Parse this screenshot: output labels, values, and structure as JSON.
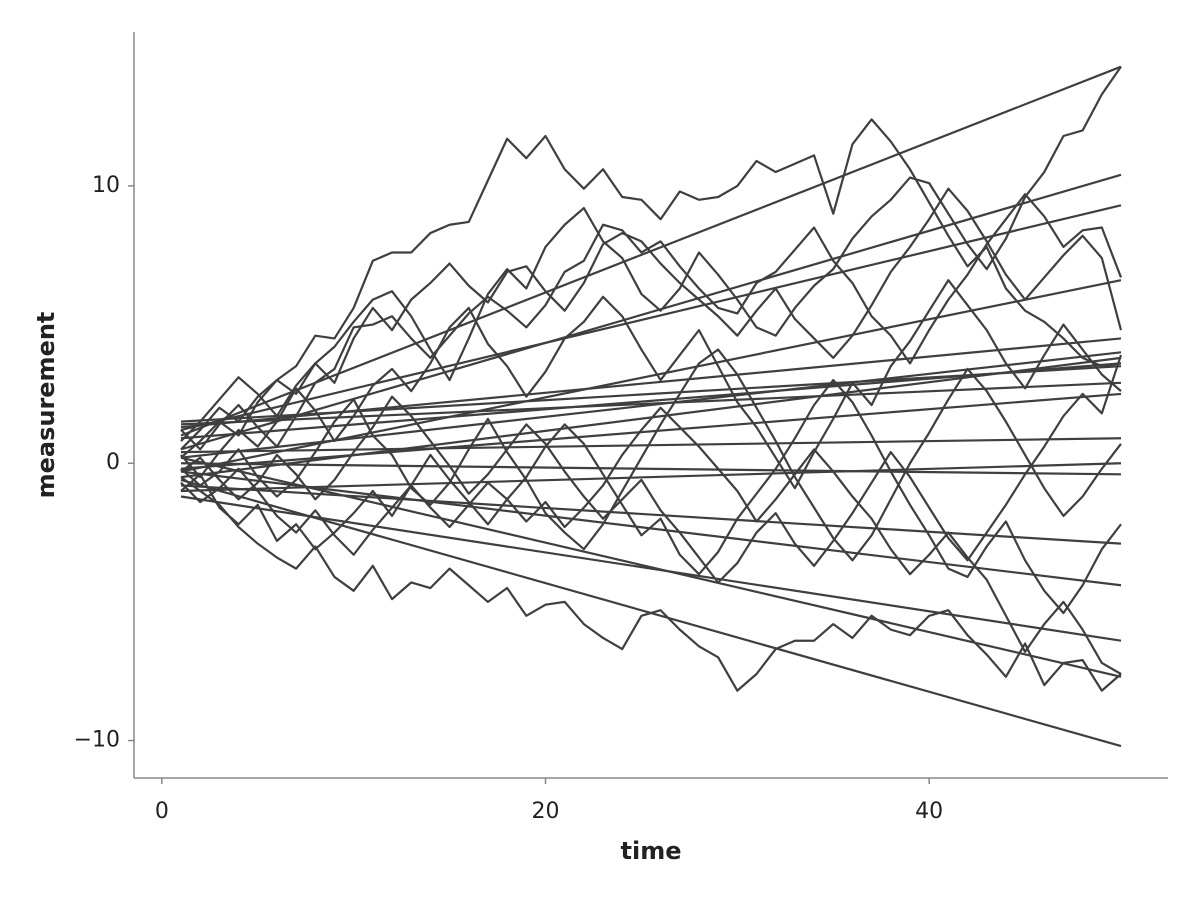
{
  "chart_data": {
    "type": "line",
    "xlabel": "time",
    "ylabel": "measurement",
    "xlim": [
      -1.45,
      52.45
    ],
    "ylim": [
      -11.35,
      15.55
    ],
    "xticks": [
      0,
      20,
      40
    ],
    "yticks": [
      {
        "value": -10,
        "label": "−10"
      },
      0,
      10
    ],
    "x": [
      1,
      2,
      3,
      4,
      5,
      6,
      7,
      8,
      9,
      10,
      11,
      12,
      13,
      14,
      15,
      16,
      17,
      18,
      19,
      20,
      21,
      22,
      23,
      24,
      25,
      26,
      27,
      28,
      29,
      30,
      31,
      32,
      33,
      34,
      35,
      36,
      37,
      38,
      39,
      40,
      41,
      42,
      43,
      44,
      45,
      46,
      47,
      48,
      49,
      50
    ],
    "series": [
      {
        "color": "#3f3f3f",
        "values": [
          0.5,
          1.2,
          2.0,
          1.5,
          2.4,
          3.0,
          3.5,
          4.6,
          4.5,
          5.6,
          7.3,
          7.6,
          7.6,
          8.3,
          8.6,
          8.7,
          10.2,
          11.7,
          11.0,
          11.8,
          10.6,
          9.9,
          10.6,
          9.6,
          9.5,
          8.8,
          9.8,
          9.5,
          9.6,
          10.0,
          10.9,
          10.5,
          10.8,
          11.1,
          9.0,
          11.5,
          12.4,
          11.6,
          10.6,
          9.4,
          8.2,
          7.1,
          7.8,
          6.3,
          5.5,
          5.1,
          4.5,
          3.8,
          3.5,
          3.6
        ]
      },
      {
        "color": "#3f3f3f",
        "values": [
          -0.5,
          -1.0,
          -1.5,
          -2.3,
          -2.9,
          -3.4,
          -3.8,
          -3.0,
          -4.1,
          -4.6,
          -3.7,
          -4.9,
          -4.3,
          -4.5,
          -3.8,
          -4.4,
          -5.0,
          -4.5,
          -5.5,
          -5.1,
          -5.0,
          -5.8,
          -6.3,
          -6.7,
          -5.5,
          -5.3,
          -6.0,
          -6.6,
          -7.0,
          -8.2,
          -7.6,
          -6.7,
          -6.4,
          -6.4,
          -5.8,
          -6.3,
          -5.5,
          -6.0,
          -6.2,
          -5.5,
          -5.3,
          -6.2,
          -6.9,
          -7.7,
          -6.5,
          -8.0,
          -7.2,
          -7.1,
          -8.2,
          -7.6
        ]
      },
      {
        "color": "#3f3f3f",
        "values": [
          0.2,
          0.8,
          1.5,
          1.0,
          2.2,
          3.0,
          2.5,
          3.6,
          4.2,
          5.1,
          5.9,
          6.2,
          5.3,
          4.1,
          3.0,
          4.5,
          6.1,
          7.0,
          6.3,
          7.8,
          8.6,
          9.2,
          8.0,
          7.4,
          6.1,
          5.5,
          6.3,
          7.6,
          6.8,
          5.9,
          4.9,
          4.6,
          5.6,
          6.4,
          7.0,
          8.1,
          8.9,
          9.5,
          10.3,
          10.1,
          9.0,
          7.9,
          7.0,
          8.1,
          9.6,
          10.5,
          11.8,
          12.0,
          13.3,
          14.3
        ]
      },
      {
        "color": "#3f3f3f",
        "values": [
          -0.2,
          -0.8,
          -0.3,
          0.5,
          -0.5,
          -1.2,
          -0.6,
          0.4,
          1.5,
          2.3,
          1.0,
          0.3,
          -0.9,
          -1.5,
          -0.7,
          0.5,
          1.6,
          0.4,
          -0.6,
          -1.8,
          -2.5,
          -3.1,
          -2.2,
          -1.0,
          0.2,
          1.4,
          2.5,
          3.6,
          4.1,
          3.2,
          2.0,
          0.8,
          -0.5,
          -1.6,
          -2.7,
          -3.5,
          -2.6,
          -1.3,
          0.0,
          1.1,
          2.3,
          3.4,
          2.6,
          1.5,
          0.3,
          -0.9,
          -1.9,
          -1.2,
          -0.2,
          0.7
        ]
      },
      {
        "color": "#3f3f3f",
        "values": [
          0.8,
          1.5,
          2.3,
          3.1,
          2.5,
          1.7,
          2.8,
          3.6,
          2.9,
          4.5,
          5.6,
          4.8,
          5.9,
          6.5,
          7.2,
          6.4,
          5.8,
          6.9,
          7.1,
          6.2,
          5.5,
          6.5,
          7.9,
          8.3,
          8.0,
          7.2,
          6.5,
          5.9,
          5.3,
          4.6,
          5.5,
          6.3,
          5.2,
          4.5,
          3.8,
          4.6,
          5.7,
          6.9,
          7.8,
          8.8,
          9.9,
          9.1,
          8.0,
          6.8,
          5.9,
          6.7,
          7.5,
          8.2,
          7.4,
          4.8
        ]
      },
      {
        "color": "#3f3f3f",
        "values": [
          -1.0,
          -0.4,
          -1.6,
          -2.2,
          -1.5,
          -2.8,
          -2.2,
          -3.1,
          -2.5,
          -1.8,
          -1.0,
          -1.9,
          -0.8,
          0.3,
          -0.6,
          -1.4,
          -2.2,
          -1.3,
          -0.5,
          0.6,
          1.4,
          0.7,
          -0.4,
          -1.5,
          -2.6,
          -2.0,
          -3.3,
          -4.0,
          -3.2,
          -2.0,
          -1.1,
          -0.2,
          0.9,
          2.1,
          3.0,
          2.2,
          1.0,
          -0.3,
          -1.5,
          -2.6,
          -3.8,
          -4.1,
          -3.0,
          -2.1,
          -3.5,
          -4.6,
          -5.4,
          -4.4,
          -3.1,
          -2.2
        ]
      },
      {
        "color": "#3f3f3f",
        "values": [
          0.3,
          -0.5,
          0.4,
          1.2,
          0.6,
          1.5,
          2.7,
          1.9,
          0.8,
          1.7,
          2.8,
          3.4,
          2.6,
          3.6,
          4.9,
          5.6,
          4.3,
          3.5,
          2.4,
          3.3,
          4.5,
          5.1,
          6.0,
          5.3,
          4.1,
          3.0,
          3.9,
          4.8,
          3.5,
          2.2,
          1.3,
          0.2,
          -0.9,
          0.4,
          1.6,
          2.9,
          2.1,
          3.5,
          4.4,
          5.5,
          6.6,
          5.7,
          4.8,
          3.6,
          2.7,
          3.9,
          5.0,
          4.1,
          3.2,
          2.6
        ]
      },
      {
        "color": "#3f3f3f",
        "values": [
          -0.7,
          -1.4,
          -0.9,
          -0.2,
          -1.0,
          -1.9,
          -2.5,
          -1.7,
          -2.6,
          -3.3,
          -2.4,
          -1.6,
          -0.8,
          -1.6,
          -2.3,
          -1.5,
          -0.7,
          -1.3,
          -2.1,
          -1.4,
          -2.3,
          -1.6,
          -0.8,
          0.3,
          1.2,
          2.0,
          1.3,
          0.6,
          -0.2,
          -1.0,
          -2.1,
          -1.3,
          -0.4,
          0.5,
          -0.3,
          -1.2,
          -2.0,
          -3.1,
          -4.0,
          -3.3,
          -2.5,
          -3.4,
          -4.2,
          -5.5,
          -6.8,
          -5.8,
          -5.0,
          -6.0,
          -7.2,
          -7.6
        ]
      },
      {
        "color": "#3f3f3f",
        "values": [
          1.2,
          0.5,
          1.4,
          2.1,
          1.3,
          0.6,
          1.7,
          2.9,
          3.4,
          4.9,
          5.0,
          5.3,
          4.5,
          3.8,
          4.6,
          5.4,
          6.0,
          5.5,
          4.9,
          5.7,
          6.9,
          7.3,
          8.6,
          8.4,
          7.6,
          8.0,
          7.1,
          6.3,
          5.6,
          5.4,
          6.5,
          6.9,
          7.7,
          8.5,
          7.3,
          6.5,
          5.3,
          4.6,
          3.6,
          4.8,
          5.9,
          6.8,
          7.9,
          8.8,
          9.7,
          8.9,
          7.8,
          8.4,
          8.5,
          6.7
        ]
      },
      {
        "color": "#3f3f3f",
        "values": [
          -0.3,
          0.2,
          -0.6,
          -1.3,
          -0.7,
          0.3,
          -0.4,
          -1.3,
          -0.6,
          0.4,
          1.3,
          2.4,
          1.7,
          0.8,
          -0.1,
          -1.1,
          -0.4,
          0.5,
          1.4,
          0.7,
          -0.3,
          -1.2,
          -2.0,
          -1.3,
          -0.6,
          -1.7,
          -2.5,
          -3.4,
          -4.3,
          -3.6,
          -2.5,
          -1.8,
          -2.9,
          -3.7,
          -2.8,
          -1.8,
          -0.7,
          0.4,
          -0.5,
          -1.6,
          -2.7,
          -3.5,
          -2.5,
          -1.5,
          -0.4,
          0.6,
          1.7,
          2.5,
          1.8,
          3.9
        ]
      },
      {
        "color": "#3f3f3f",
        "x": [
          1,
          50
        ],
        "values": [
          1.0,
          14.3
        ]
      },
      {
        "color": "#3f3f3f",
        "x": [
          1,
          50
        ],
        "values": [
          0.5,
          10.4
        ]
      },
      {
        "color": "#3f3f3f",
        "x": [
          1,
          50
        ],
        "values": [
          1.2,
          9.3
        ]
      },
      {
        "color": "#3f3f3f",
        "x": [
          1,
          50
        ],
        "values": [
          -0.3,
          6.6
        ]
      },
      {
        "color": "#3f3f3f",
        "x": [
          1,
          50
        ],
        "values": [
          1.3,
          4.5
        ]
      },
      {
        "color": "#3f3f3f",
        "x": [
          1,
          50
        ],
        "values": [
          0.2,
          4.0
        ]
      },
      {
        "color": "#3f3f3f",
        "x": [
          1,
          50
        ],
        "values": [
          -0.5,
          3.8
        ]
      },
      {
        "color": "#3f3f3f",
        "x": [
          1,
          50
        ],
        "values": [
          0.9,
          3.6
        ]
      },
      {
        "color": "#3f3f3f",
        "x": [
          1,
          50
        ],
        "values": [
          1.5,
          3.5
        ]
      },
      {
        "color": "#3f3f3f",
        "x": [
          1,
          50
        ],
        "values": [
          1.4,
          2.9
        ]
      },
      {
        "color": "#3f3f3f",
        "x": [
          1,
          50
        ],
        "values": [
          -0.2,
          2.5
        ]
      },
      {
        "color": "#3f3f3f",
        "x": [
          1,
          50
        ],
        "values": [
          0.4,
          0.9
        ]
      },
      {
        "color": "#3f3f3f",
        "x": [
          1,
          50
        ],
        "values": [
          -1.0,
          0.0
        ]
      },
      {
        "color": "#3f3f3f",
        "x": [
          1,
          50
        ],
        "values": [
          0.0,
          -0.4
        ]
      },
      {
        "color": "#3f3f3f",
        "x": [
          1,
          50
        ],
        "values": [
          -0.8,
          -2.9
        ]
      },
      {
        "color": "#3f3f3f",
        "x": [
          1,
          50
        ],
        "values": [
          -0.3,
          -4.4
        ]
      },
      {
        "color": "#3f3f3f",
        "x": [
          1,
          50
        ],
        "values": [
          -1.2,
          -6.4
        ]
      },
      {
        "color": "#3f3f3f",
        "x": [
          1,
          50
        ],
        "values": [
          0.2,
          -7.7
        ]
      },
      {
        "color": "#3f3f3f",
        "x": [
          1,
          50
        ],
        "values": [
          -0.6,
          -10.2
        ]
      }
    ]
  }
}
